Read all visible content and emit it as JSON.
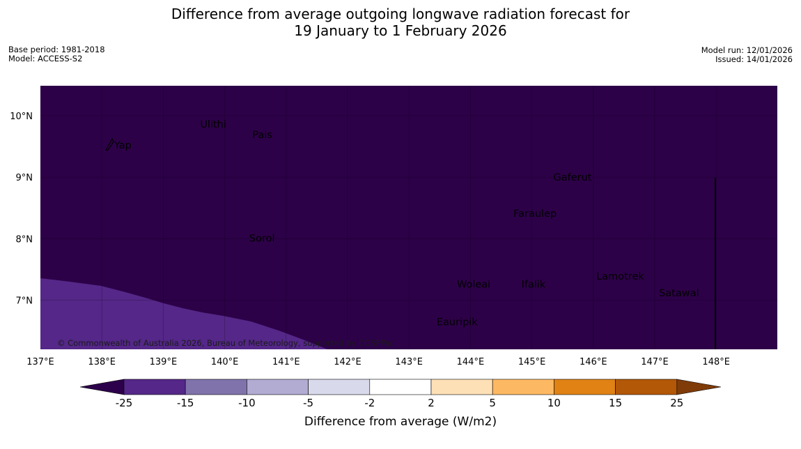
{
  "title": {
    "line1": "Difference from average outgoing longwave radiation forecast for",
    "line2": "19 January to 1 February 2026"
  },
  "meta_left": {
    "base_period": "Base period: 1981-2018",
    "model": "Model: ACCESS-S2"
  },
  "meta_right": {
    "model_run": "Model run: 12/01/2026",
    "issued": "Issued: 14/01/2026"
  },
  "map": {
    "lon_range": [
      137,
      149
    ],
    "lat_range": [
      6.2,
      10.5
    ],
    "lon_ticks": [
      "137°E",
      "138°E",
      "139°E",
      "140°E",
      "141°E",
      "142°E",
      "143°E",
      "144°E",
      "145°E",
      "146°E",
      "147°E",
      "148°E"
    ],
    "lat_ticks": [
      "10°N",
      "9°N",
      "8°N",
      "7°N"
    ],
    "places": [
      {
        "name": "Yap",
        "lon": 138.2,
        "lat": 9.52
      },
      {
        "name": "Ulithi",
        "lon": 139.6,
        "lat": 9.86
      },
      {
        "name": "Pais",
        "lon": 140.45,
        "lat": 9.69
      },
      {
        "name": "Gaferut",
        "lon": 145.35,
        "lat": 9.0
      },
      {
        "name": "Faraulep",
        "lon": 144.7,
        "lat": 8.41
      },
      {
        "name": "Sorol",
        "lon": 140.4,
        "lat": 8.01
      },
      {
        "name": "Woleai",
        "lon": 143.78,
        "lat": 7.26
      },
      {
        "name": "Ifalik",
        "lon": 144.83,
        "lat": 7.26
      },
      {
        "name": "Lamotrek",
        "lon": 146.05,
        "lat": 7.39
      },
      {
        "name": "Satawal",
        "lon": 147.07,
        "lat": 7.12
      },
      {
        "name": "Eauripik",
        "lon": 143.45,
        "lat": 6.65
      }
    ],
    "background_color": "#2d0148",
    "anomaly_color": "#542788",
    "copyright": "© Commonwealth of Australia 2026, Bureau of Meteorology, supported by COSPPac"
  },
  "colorbar": {
    "labels": [
      "-25",
      "-15",
      "-10",
      "-5",
      "-2",
      "2",
      "5",
      "10",
      "15",
      "25"
    ],
    "colors": [
      "#542788",
      "#8073ac",
      "#b2abd2",
      "#d8daeb",
      "#ffffff",
      "#fee0b6",
      "#fdb863",
      "#e08214",
      "#b35806"
    ],
    "low_extend_color": "#2d004b",
    "high_extend_color": "#7f3b08",
    "title": "Difference from average (W/m2)"
  }
}
